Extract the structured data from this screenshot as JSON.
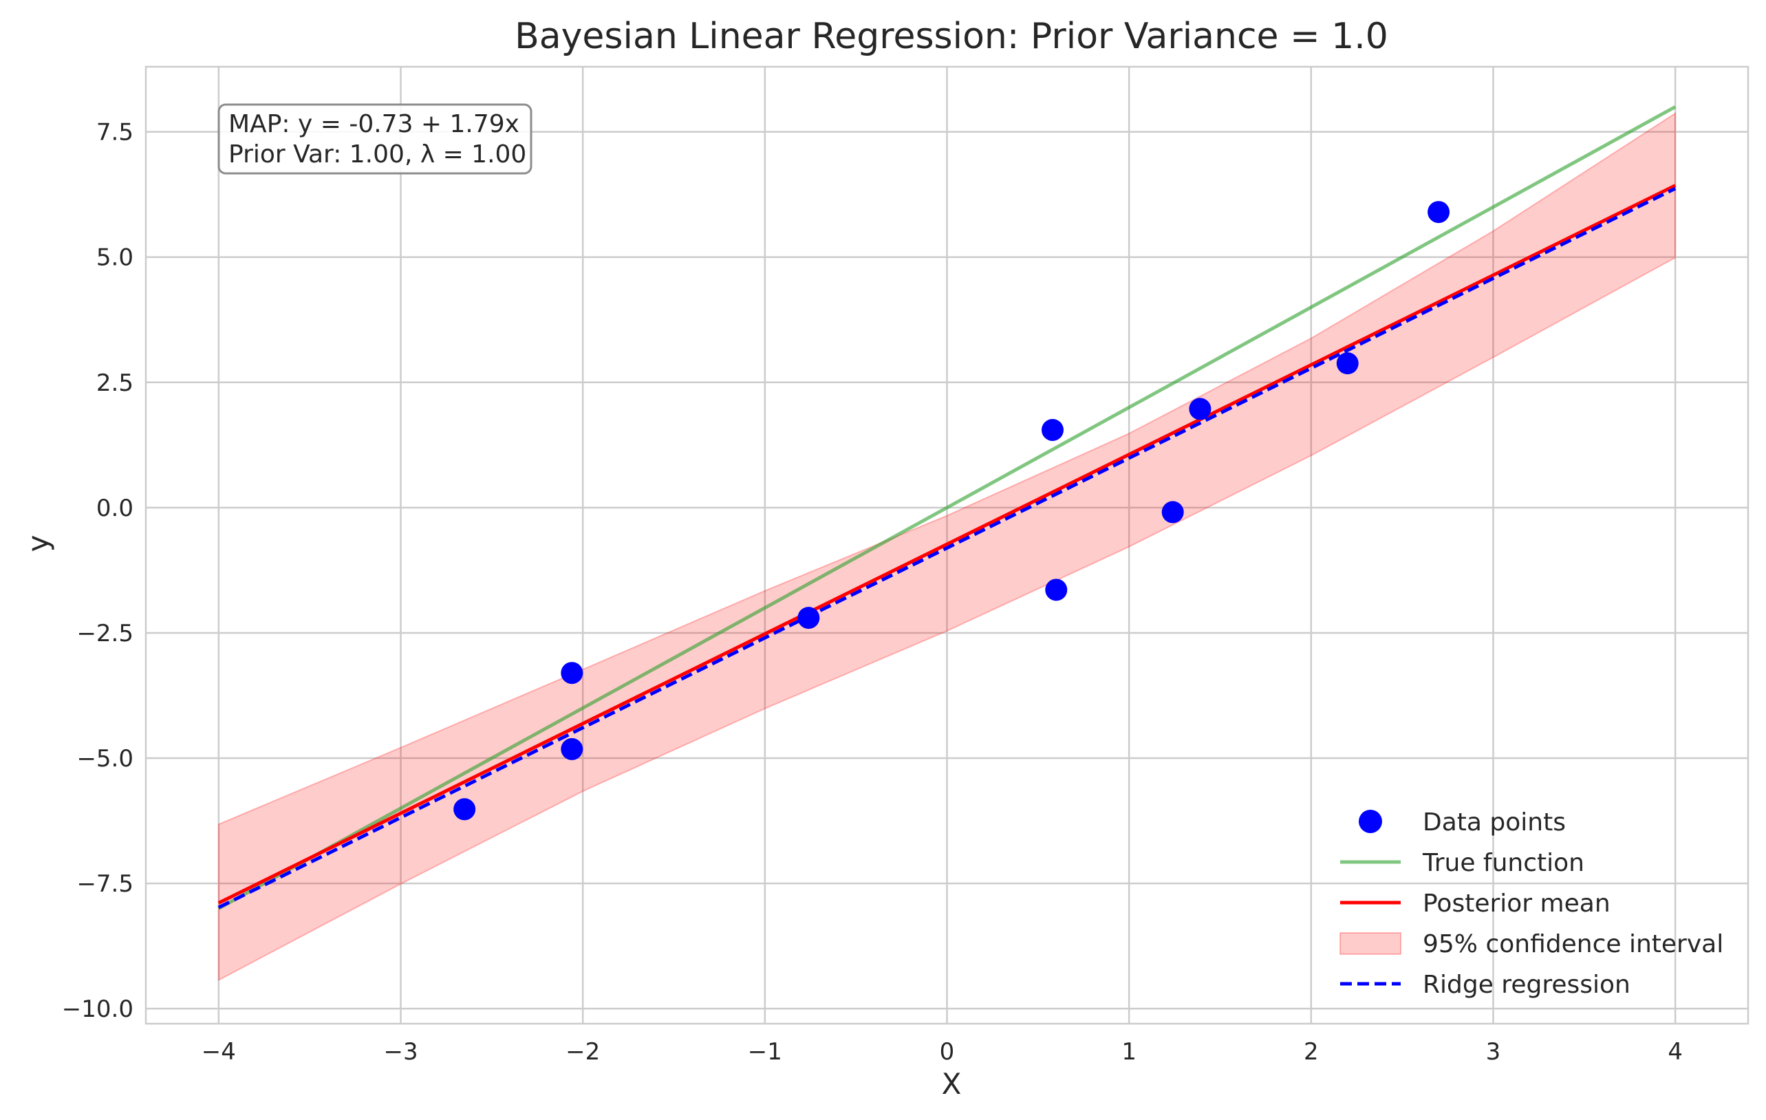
{
  "chart_data": {
    "type": "scatter",
    "title": "Bayesian Linear Regression: Prior Variance = 1.0",
    "xlabel": "X",
    "ylabel": "y",
    "xlim": [
      -4.4,
      4.4
    ],
    "ylim": [
      -10.3,
      8.8
    ],
    "x_ticks": [
      -4,
      -3,
      -2,
      -1,
      0,
      1,
      2,
      3,
      4
    ],
    "x_tick_labels": [
      "−4",
      "−3",
      "−2",
      "−1",
      "0",
      "1",
      "2",
      "3",
      "4"
    ],
    "y_ticks": [
      -10.0,
      -7.5,
      -5.0,
      -2.5,
      0.0,
      2.5,
      5.0,
      7.5
    ],
    "y_tick_labels": [
      "−10.0",
      "−7.5",
      "−5.0",
      "−2.5",
      "0.0",
      "2.5",
      "5.0",
      "7.5"
    ],
    "grid": true,
    "legend_position": "lower-right",
    "annotation": {
      "line1": "MAP: y = -0.73 + 1.79x",
      "line2": "Prior Var: 1.00, λ = 1.00"
    },
    "data_points": {
      "name": "Data points",
      "color": "#0000ff",
      "x": [
        -2.65,
        -2.06,
        -2.06,
        -0.76,
        0.58,
        0.6,
        1.24,
        1.39,
        2.2,
        2.7
      ],
      "y": [
        -6.02,
        -3.3,
        -4.82,
        -2.2,
        1.55,
        -1.64,
        -0.09,
        1.97,
        2.88,
        5.9
      ]
    },
    "true_function": {
      "name": "True function",
      "color": "#2ca02c",
      "x": [
        -4,
        4
      ],
      "y": [
        -8.0,
        8.0
      ]
    },
    "posterior_mean": {
      "name": "Posterior mean",
      "color": "#ff0000",
      "x": [
        -4,
        4
      ],
      "y": [
        -7.89,
        6.43
      ]
    },
    "confidence_interval": {
      "name": "95% confidence interval",
      "color": "#ff0000",
      "x": [
        -4,
        -3,
        -2,
        -1,
        0,
        1,
        2,
        3,
        4
      ],
      "lower": [
        -9.43,
        -7.51,
        -5.66,
        -4.01,
        -2.46,
        -0.78,
        1.04,
        3.0,
        4.99
      ],
      "upper": [
        -6.32,
        -4.79,
        -3.23,
        -1.66,
        -0.16,
        1.48,
        3.38,
        5.52,
        7.87
      ]
    },
    "ridge_regression": {
      "name": "Ridge regression",
      "color": "#0000ff",
      "x": [
        -4,
        4
      ],
      "y": [
        -7.98,
        6.37
      ]
    }
  }
}
